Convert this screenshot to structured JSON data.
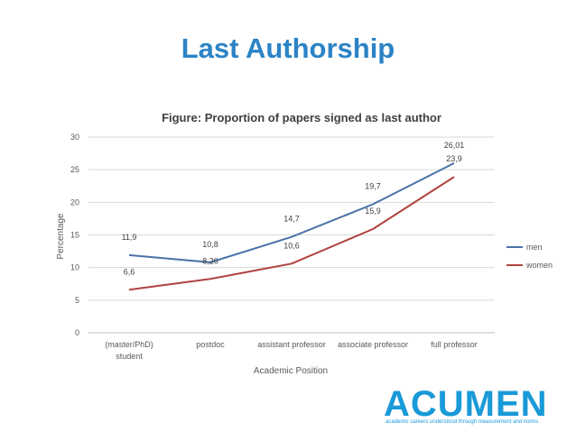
{
  "slide": {
    "title": "Last Authorship"
  },
  "chart_data": {
    "type": "line",
    "title": "Figure: Proportion of papers signed as last author",
    "xlabel": "Academic Position",
    "ylabel": "Percentage",
    "categories": [
      "(master/PhD)|student",
      "postdoc",
      "assistant professor",
      "associate professor",
      "full professor"
    ],
    "ylim": [
      0,
      30
    ],
    "yticks": [
      0,
      5,
      10,
      15,
      20,
      25,
      30
    ],
    "grid": true,
    "legend_position": "right",
    "series": [
      {
        "name": "men",
        "color": "#4a72a8",
        "values": [
          11.9,
          10.8,
          14.7,
          19.7,
          26.01
        ],
        "labels": [
          "11,9",
          "10,8",
          "14,7",
          "19,7",
          "26,01"
        ]
      },
      {
        "name": "women",
        "color": "#b0433f",
        "values": [
          6.6,
          8.26,
          10.6,
          15.9,
          23.9
        ],
        "labels": [
          "6,6",
          "8,26",
          "10,6",
          "15,9",
          "23,9"
        ]
      }
    ]
  },
  "logo": {
    "text": "ACUMEN",
    "tagline": "academic careers understood through measurement and norms"
  }
}
